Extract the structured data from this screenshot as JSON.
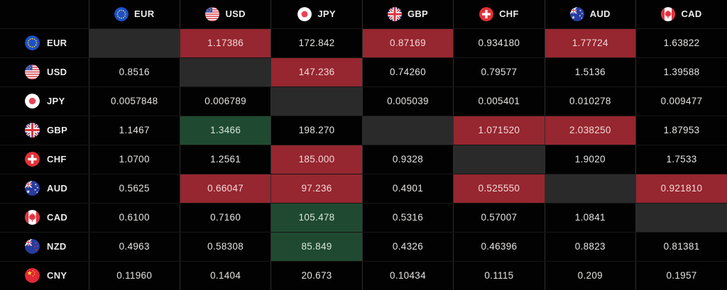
{
  "table": {
    "columns": [
      {
        "code": "EUR",
        "icon": "eur-flag-icon"
      },
      {
        "code": "USD",
        "icon": "usd-flag-icon"
      },
      {
        "code": "JPY",
        "icon": "jpy-flag-icon"
      },
      {
        "code": "GBP",
        "icon": "gbp-flag-icon"
      },
      {
        "code": "CHF",
        "icon": "chf-flag-icon"
      },
      {
        "code": "AUD",
        "icon": "aud-flag-icon"
      },
      {
        "code": "CAD",
        "icon": "cad-flag-icon"
      }
    ],
    "rows": [
      {
        "code": "EUR",
        "icon": "eur-flag-icon",
        "cells": [
          {
            "value": "",
            "style": "self"
          },
          {
            "value": "1.17386",
            "style": "down"
          },
          {
            "value": "172.842",
            "style": "none"
          },
          {
            "value": "0.87169",
            "style": "down"
          },
          {
            "value": "0.934180",
            "style": "none"
          },
          {
            "value": "1.77724",
            "style": "down"
          },
          {
            "value": "1.63822",
            "style": "none"
          }
        ]
      },
      {
        "code": "USD",
        "icon": "usd-flag-icon",
        "cells": [
          {
            "value": "0.8516",
            "style": "none"
          },
          {
            "value": "",
            "style": "self"
          },
          {
            "value": "147.236",
            "style": "down"
          },
          {
            "value": "0.74260",
            "style": "none"
          },
          {
            "value": "0.79577",
            "style": "none"
          },
          {
            "value": "1.5136",
            "style": "none"
          },
          {
            "value": "1.39588",
            "style": "none"
          }
        ]
      },
      {
        "code": "JPY",
        "icon": "jpy-flag-icon",
        "cells": [
          {
            "value": "0.0057848",
            "style": "none"
          },
          {
            "value": "0.006789",
            "style": "none"
          },
          {
            "value": "",
            "style": "self"
          },
          {
            "value": "0.005039",
            "style": "none"
          },
          {
            "value": "0.005401",
            "style": "none"
          },
          {
            "value": "0.010278",
            "style": "none"
          },
          {
            "value": "0.009477",
            "style": "none"
          }
        ]
      },
      {
        "code": "GBP",
        "icon": "gbp-flag-icon",
        "cells": [
          {
            "value": "1.1467",
            "style": "none"
          },
          {
            "value": "1.3466",
            "style": "up"
          },
          {
            "value": "198.270",
            "style": "none"
          },
          {
            "value": "",
            "style": "self"
          },
          {
            "value": "1.071520",
            "style": "down"
          },
          {
            "value": "2.038250",
            "style": "down"
          },
          {
            "value": "1.87953",
            "style": "none"
          }
        ]
      },
      {
        "code": "CHF",
        "icon": "chf-flag-icon",
        "cells": [
          {
            "value": "1.0700",
            "style": "none"
          },
          {
            "value": "1.2561",
            "style": "none"
          },
          {
            "value": "185.000",
            "style": "down"
          },
          {
            "value": "0.9328",
            "style": "none"
          },
          {
            "value": "",
            "style": "self"
          },
          {
            "value": "1.9020",
            "style": "none"
          },
          {
            "value": "1.7533",
            "style": "none"
          }
        ]
      },
      {
        "code": "AUD",
        "icon": "aud-flag-icon",
        "cells": [
          {
            "value": "0.5625",
            "style": "none"
          },
          {
            "value": "0.66047",
            "style": "down"
          },
          {
            "value": "97.236",
            "style": "down"
          },
          {
            "value": "0.4901",
            "style": "none"
          },
          {
            "value": "0.525550",
            "style": "down"
          },
          {
            "value": "",
            "style": "self"
          },
          {
            "value": "0.921810",
            "style": "down"
          }
        ]
      },
      {
        "code": "CAD",
        "icon": "cad-flag-icon",
        "cells": [
          {
            "value": "0.6100",
            "style": "none"
          },
          {
            "value": "0.7160",
            "style": "none"
          },
          {
            "value": "105.478",
            "style": "up"
          },
          {
            "value": "0.5316",
            "style": "none"
          },
          {
            "value": "0.57007",
            "style": "none"
          },
          {
            "value": "1.0841",
            "style": "none"
          },
          {
            "value": "",
            "style": "self"
          }
        ]
      },
      {
        "code": "NZD",
        "icon": "nzd-flag-icon",
        "cells": [
          {
            "value": "0.4963",
            "style": "none"
          },
          {
            "value": "0.58308",
            "style": "none"
          },
          {
            "value": "85.849",
            "style": "up"
          },
          {
            "value": "0.4326",
            "style": "none"
          },
          {
            "value": "0.46396",
            "style": "none"
          },
          {
            "value": "0.8823",
            "style": "none"
          },
          {
            "value": "0.81381",
            "style": "none"
          }
        ]
      },
      {
        "code": "CNY",
        "icon": "cny-flag-icon",
        "cells": [
          {
            "value": "0.11960",
            "style": "none"
          },
          {
            "value": "0.1404",
            "style": "none"
          },
          {
            "value": "20.673",
            "style": "none"
          },
          {
            "value": "0.10434",
            "style": "none"
          },
          {
            "value": "0.1115",
            "style": "none"
          },
          {
            "value": "0.209",
            "style": "none"
          },
          {
            "value": "0.1957",
            "style": "none"
          }
        ]
      }
    ]
  },
  "colors": {
    "background": "#000000",
    "down_bg": "#96262f",
    "up_bg": "#1f4a31",
    "self_bg": "#2b2a2a",
    "cell_text": "#e6e4e2",
    "down_text": "#f3d9da",
    "up_text": "#d9e6dc",
    "header_text": "#ececec"
  }
}
